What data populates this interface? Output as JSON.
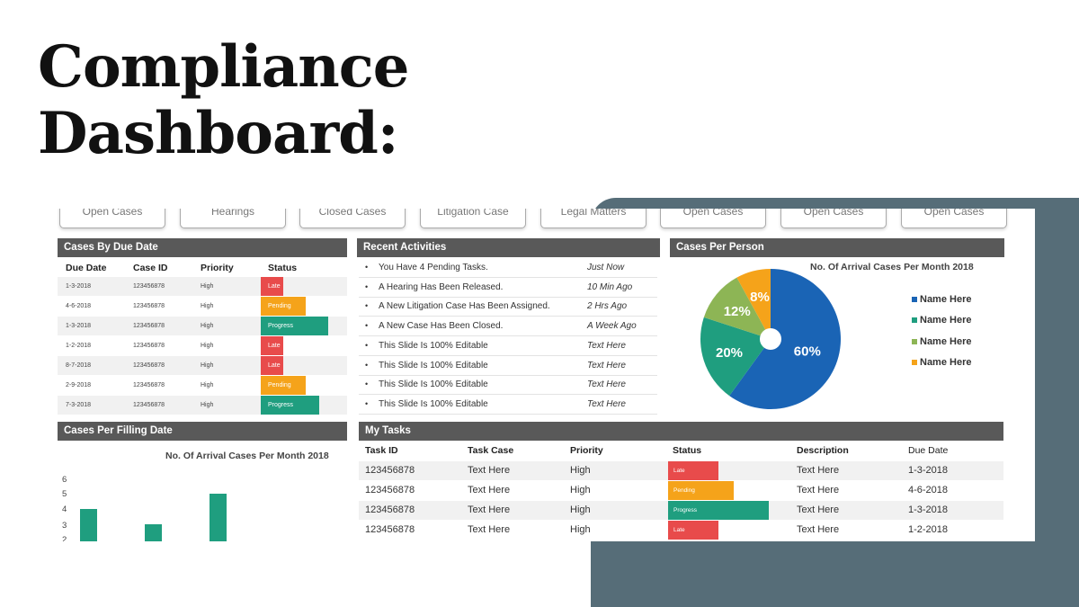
{
  "title_line1": "Compliance",
  "title_line2": "Dashboard:",
  "colors": {
    "late": "#e84b4b",
    "pending": "#f5a31a",
    "progress": "#1f9e7f",
    "header": "#595959",
    "deco": "#566d78",
    "pie_blue": "#1a64b5",
    "pie_teal": "#1f9e7f",
    "pie_green": "#8db555",
    "pie_orange": "#f5a31a"
  },
  "tabs": [
    "Open Cases",
    "Hearings",
    "Closed Cases",
    "Litigation Case",
    "Legal Matters",
    "Open Cases",
    "Open Cases",
    "Open Cases"
  ],
  "due": {
    "header": "Cases By Due Date",
    "cols": [
      "Due Date",
      "Case ID",
      "Priority",
      "Status"
    ],
    "rows": [
      {
        "date": "1-3-2018",
        "id": "123456878",
        "priority": "High",
        "status": "Late",
        "kind": "late",
        "level": 0.33
      },
      {
        "date": "4-6-2018",
        "id": "123456878",
        "priority": "High",
        "status": "Pending",
        "kind": "pending",
        "level": 0.67
      },
      {
        "date": "1-3-2018",
        "id": "123456878",
        "priority": "High",
        "status": "Progress",
        "kind": "progress",
        "level": 1.0
      },
      {
        "date": "1-2-2018",
        "id": "123456878",
        "priority": "High",
        "status": "Late",
        "kind": "late",
        "level": 0.33
      },
      {
        "date": "8-7-2018",
        "id": "123456878",
        "priority": "High",
        "status": "Late",
        "kind": "late",
        "level": 0.33
      },
      {
        "date": "2-9-2018",
        "id": "123456878",
        "priority": "High",
        "status": "Pending",
        "kind": "pending",
        "level": 0.67
      },
      {
        "date": "7-3-2018",
        "id": "123456878",
        "priority": "High",
        "status": "Progress",
        "kind": "progress",
        "level": 0.87
      }
    ]
  },
  "activities": {
    "header": "Recent Activities",
    "bullet": "•",
    "items": [
      {
        "text": "You Have 4 Pending Tasks.",
        "time": "Just Now"
      },
      {
        "text": "A Hearing Has Been Released.",
        "time": "10 Min Ago"
      },
      {
        "text": "A New Litigation Case Has Been Assigned.",
        "time": "2 Hrs Ago"
      },
      {
        "text": "A New Case Has Been Closed.",
        "time": "A Week Ago"
      },
      {
        "text": "This Slide Is 100% Editable",
        "time": "Text Here"
      },
      {
        "text": "This Slide Is 100% Editable",
        "time": "Text Here"
      },
      {
        "text": "This Slide Is 100% Editable",
        "time": "Text Here"
      },
      {
        "text": "This Slide Is 100% Editable",
        "time": "Text Here"
      }
    ]
  },
  "person": {
    "header": "Cases Per Person",
    "legend": [
      "Name Here",
      "Name Here",
      "Name Here",
      "Name Here"
    ]
  },
  "filing": {
    "header": "Cases Per Filling Date"
  },
  "tasks": {
    "header": "My Tasks",
    "cols": [
      "Task ID",
      "Task Case",
      "Priority",
      "Status",
      "Description",
      "Due Date"
    ],
    "rows": [
      {
        "id": "123456878",
        "case": "Text Here",
        "priority": "High",
        "status": "Late",
        "kind": "late",
        "level": 0.5,
        "desc": "Text Here",
        "due": "1-3-2018"
      },
      {
        "id": "123456878",
        "case": "Text Here",
        "priority": "High",
        "status": "Pending",
        "kind": "pending",
        "level": 0.65,
        "desc": "Text Here",
        "due": "4-6-2018"
      },
      {
        "id": "123456878",
        "case": "Text Here",
        "priority": "High",
        "status": "Progress",
        "kind": "progress",
        "level": 1.0,
        "desc": "Text Here",
        "due": "1-3-2018"
      },
      {
        "id": "123456878",
        "case": "Text Here",
        "priority": "High",
        "status": "Late",
        "kind": "late",
        "level": 0.5,
        "desc": "Text Here",
        "due": "1-2-2018"
      }
    ]
  },
  "chart_data": [
    {
      "type": "pie",
      "title": "No. Of Arrival Cases Per Month 2018",
      "labels": [
        "Name Here",
        "Name Here",
        "Name Here",
        "Name Here"
      ],
      "values": [
        60,
        20,
        12,
        8
      ],
      "value_labels": [
        "60%",
        "20%",
        "12%",
        "8%"
      ],
      "colors": [
        "#1a64b5",
        "#1f9e7f",
        "#8db555",
        "#f5a31a"
      ],
      "legend": "right"
    },
    {
      "type": "bar",
      "title": "No. Of Arrival Cases Per Month 2018",
      "y_ticks": [
        "6",
        "5",
        "4",
        "3",
        "2"
      ],
      "ylim": [
        2,
        6
      ],
      "values": [
        4,
        3,
        5
      ],
      "color": "#1f9e7f"
    }
  ]
}
